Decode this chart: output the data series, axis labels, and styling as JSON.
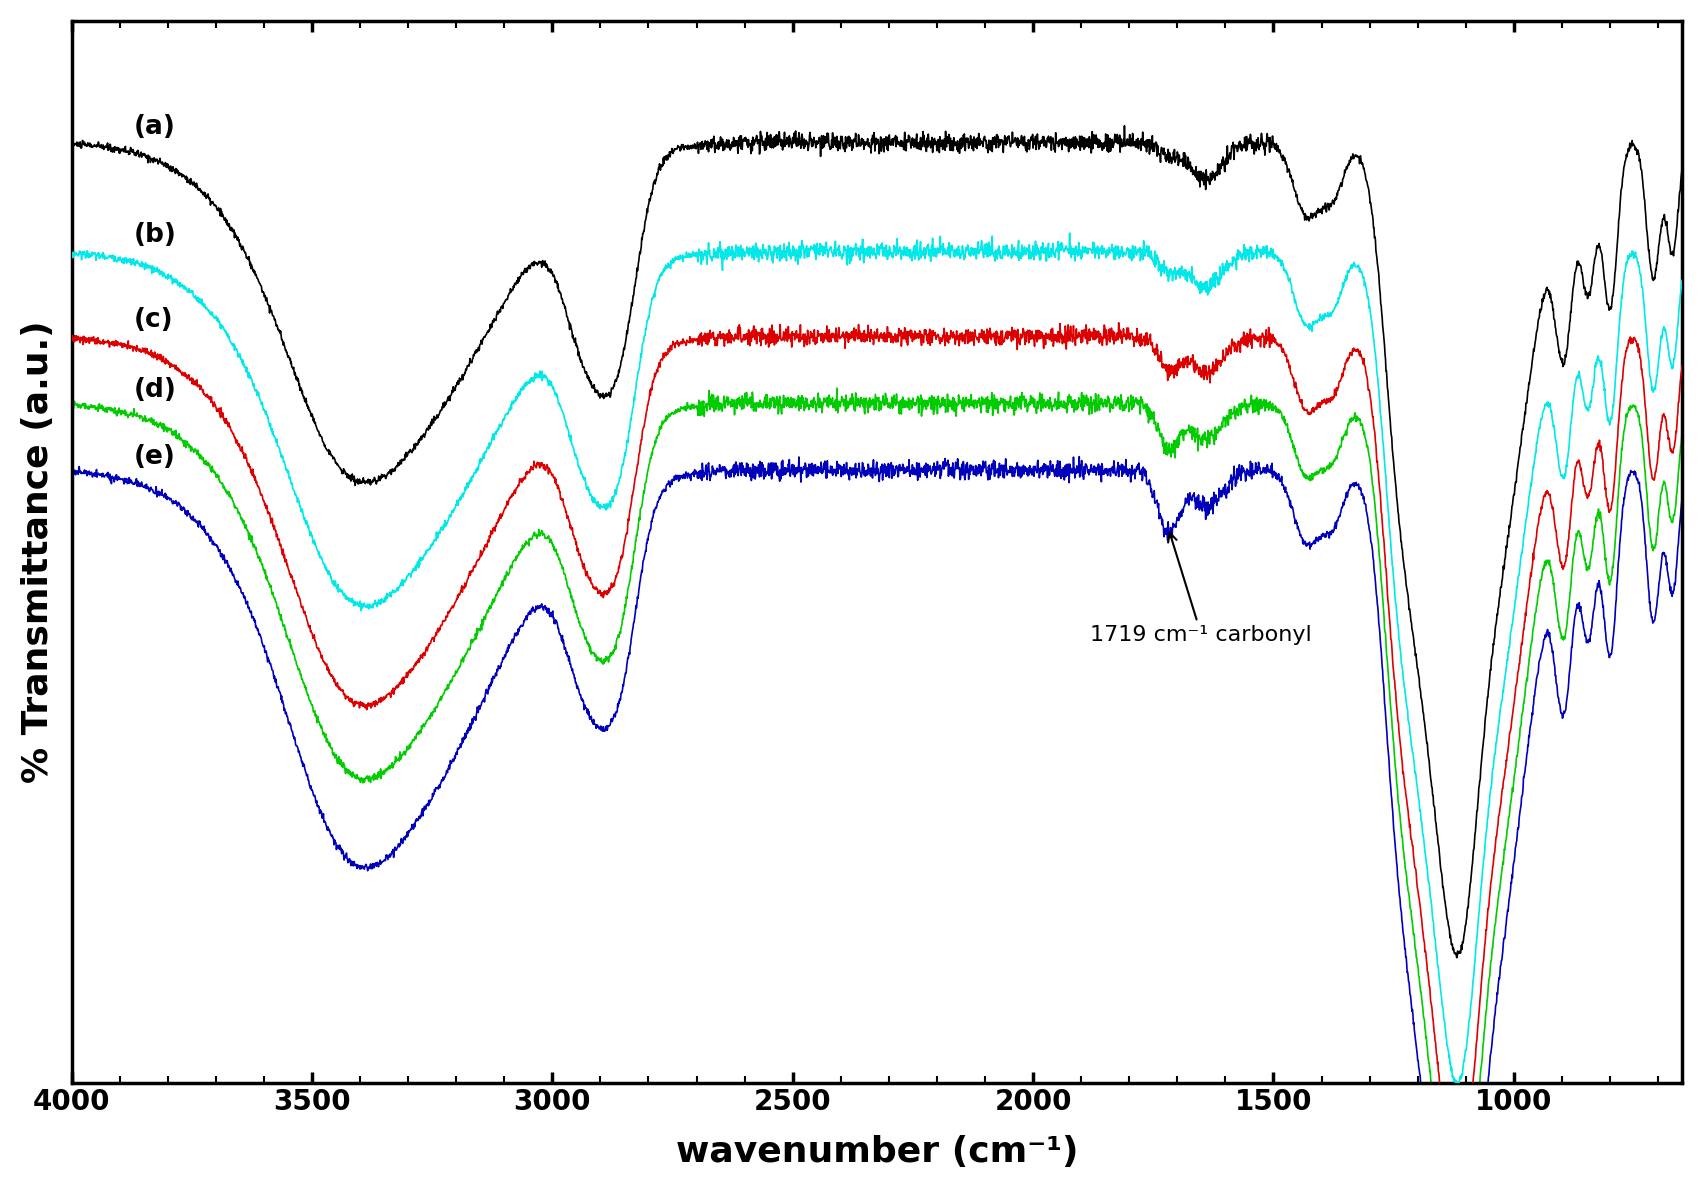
{
  "xlabel": "wavenumber (cm⁻¹)",
  "ylabel": "% Transmittance (a.u.)",
  "xlim": [
    4000,
    650
  ],
  "xticks": [
    4000,
    3500,
    3000,
    2500,
    2000,
    1500,
    1000
  ],
  "colors": {
    "a": "#000000",
    "b": "#00e8e8",
    "c": "#dd0000",
    "d": "#00cc00",
    "e": "#0000bb"
  },
  "labels": [
    "(a)",
    "(b)",
    "(c)",
    "(d)",
    "(e)"
  ],
  "annotation_text": "1719 cm⁻¹ carbonyl",
  "background_color": "#ffffff",
  "linewidth": 1.2,
  "label_fontsize": 19,
  "axis_label_fontsize": 26,
  "tick_fontsize": 20
}
